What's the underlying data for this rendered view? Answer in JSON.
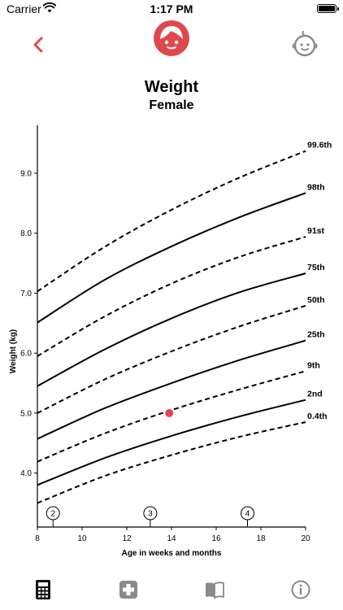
{
  "status_bar": {
    "carrier": "Carrier",
    "time": "1:17 PM"
  },
  "nav": {
    "back_icon": "chevron-left-icon",
    "center_icon": "girl-face-icon",
    "right_icon": "baby-face-icon",
    "accent_color": "#e0474c"
  },
  "chart_data": {
    "type": "line",
    "title": "Weight",
    "subtitle": "Female",
    "xlabel": "Age in weeks and months",
    "ylabel": "Weight (kg)",
    "xlim": [
      8,
      20
    ],
    "ylim": [
      3.1,
      9.8
    ],
    "x_ticks": [
      8,
      10,
      12,
      14,
      16,
      18,
      20
    ],
    "y_ticks": [
      4.0,
      5.0,
      6.0,
      7.0,
      8.0,
      9.0
    ],
    "y_tick_labels": [
      "4.0",
      "5.0",
      "6.0",
      "7.0",
      "8.0",
      "9.0"
    ],
    "month_markers": [
      {
        "label": "2",
        "x": 8.7
      },
      {
        "label": "3",
        "x": 13.05
      },
      {
        "label": "4",
        "x": 17.4
      }
    ],
    "series": [
      {
        "name": "0.4th",
        "style": "dashed",
        "x": [
          8,
          11,
          14,
          17,
          20
        ],
        "y": [
          3.5,
          3.95,
          4.3,
          4.6,
          4.85
        ]
      },
      {
        "name": "2nd",
        "style": "solid",
        "x": [
          8,
          11,
          14,
          17,
          20
        ],
        "y": [
          3.8,
          4.25,
          4.62,
          4.94,
          5.22
        ]
      },
      {
        "name": "9th",
        "style": "dashed",
        "x": [
          8,
          11,
          14,
          17,
          20
        ],
        "y": [
          4.19,
          4.66,
          5.05,
          5.39,
          5.7
        ]
      },
      {
        "name": "25th",
        "style": "solid",
        "x": [
          8,
          11,
          14,
          17,
          20
        ],
        "y": [
          4.57,
          5.08,
          5.5,
          5.88,
          6.21
        ]
      },
      {
        "name": "50th",
        "style": "dashed",
        "x": [
          8,
          11,
          14,
          17,
          20
        ],
        "y": [
          5.0,
          5.56,
          6.03,
          6.44,
          6.79
        ]
      },
      {
        "name": "75th",
        "style": "solid",
        "x": [
          8,
          11,
          14,
          17,
          20
        ],
        "y": [
          5.45,
          6.06,
          6.58,
          7.01,
          7.33
        ]
      },
      {
        "name": "91st",
        "style": "dashed",
        "x": [
          8,
          11,
          14,
          17,
          20
        ],
        "y": [
          5.95,
          6.61,
          7.16,
          7.6,
          7.94
        ]
      },
      {
        "name": "98th",
        "style": "solid",
        "x": [
          8,
          11,
          14,
          17,
          20
        ],
        "y": [
          6.51,
          7.22,
          7.78,
          8.26,
          8.67
        ]
      },
      {
        "name": "99.6th",
        "style": "dashed",
        "x": [
          8,
          11,
          14,
          17,
          20
        ],
        "y": [
          7.03,
          7.77,
          8.39,
          8.92,
          9.37
        ]
      }
    ],
    "points": [
      {
        "x": 13.9,
        "y": 5.0,
        "color": "#e0474c"
      }
    ]
  },
  "tabbar": {
    "items": [
      {
        "name": "calculator-icon",
        "active": true
      },
      {
        "name": "medical-cross-icon",
        "active": false
      },
      {
        "name": "book-icon",
        "active": false
      },
      {
        "name": "info-icon",
        "active": false
      }
    ]
  }
}
